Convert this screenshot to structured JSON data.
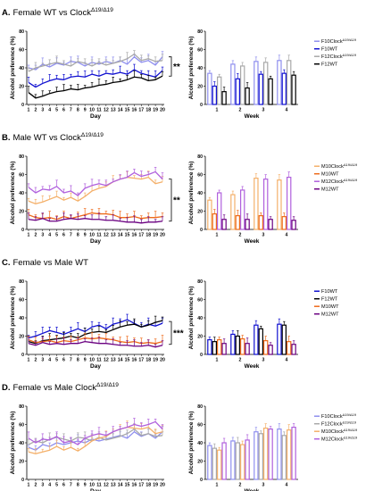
{
  "figure": {
    "stars": {
      "A": "**",
      "B": "**",
      "C": "***"
    }
  },
  "colors": {
    "F10Clock": "#8f8fee",
    "F10WT": "#1010d0",
    "F12Clock": "#a8a8a8",
    "F12WT": "#000000",
    "M10Clock": "#f4b06a",
    "M10WT": "#ee6a1a",
    "M12Clock": "#b060dd",
    "M12WT": "#6a0080"
  },
  "chart_data": [
    {
      "id": "A-line",
      "panel": "A",
      "type": "line",
      "title": "Female WT vs Clock",
      "title_sup": "Δ19/Δ19",
      "title_letter": "A.",
      "xlabel": "Day",
      "ylabel": "Alcohol preference (%)",
      "x": [
        1,
        2,
        3,
        4,
        5,
        6,
        7,
        8,
        9,
        10,
        11,
        12,
        13,
        14,
        15,
        16,
        17,
        18,
        19,
        20
      ],
      "xlim": [
        1,
        20
      ],
      "ylim": [
        0,
        80
      ],
      "yticks": [
        0,
        20,
        40,
        60,
        80
      ],
      "series": [
        {
          "key": "F10Clock",
          "values": [
            40,
            38,
            44,
            41,
            45,
            43,
            47,
            46,
            42,
            46,
            44,
            47,
            45,
            48,
            44,
            52,
            46,
            48,
            43,
            52
          ]
        },
        {
          "key": "F10WT",
          "values": [
            24,
            19,
            23,
            26,
            28,
            27,
            30,
            31,
            30,
            33,
            31,
            34,
            33,
            35,
            33,
            38,
            34,
            32,
            30,
            37
          ]
        },
        {
          "key": "F12Clock",
          "values": [
            36,
            40,
            42,
            44,
            46,
            44,
            42,
            47,
            45,
            42,
            46,
            43,
            45,
            47,
            50,
            55,
            48,
            50,
            47,
            48
          ]
        },
        {
          "key": "F12WT",
          "values": [
            13,
            7,
            9,
            12,
            14,
            15,
            17,
            16,
            18,
            19,
            21,
            22,
            24,
            25,
            27,
            30,
            29,
            26,
            27,
            31
          ]
        }
      ]
    },
    {
      "id": "A-bar",
      "panel": "A",
      "type": "bar",
      "xlabel": "Week",
      "ylabel": "Alcohol preference (%)",
      "categories": [
        "1",
        "2",
        "3",
        "4"
      ],
      "ylim": [
        0,
        80
      ],
      "yticks": [
        0,
        20,
        40,
        60,
        80
      ],
      "series": [
        {
          "name": "F10Clock",
          "sup": "Δ19/Δ19",
          "key": "F10Clock",
          "values": [
            34,
            44,
            47,
            48
          ]
        },
        {
          "name": "F10WT",
          "key": "F10WT",
          "values": [
            20,
            28,
            33,
            34
          ]
        },
        {
          "name": "F12Clock",
          "sup": "Δ19/Δ19",
          "key": "F12Clock",
          "values": [
            30,
            42,
            46,
            48
          ]
        },
        {
          "name": "F12WT",
          "key": "F12WT",
          "values": [
            14,
            18,
            28,
            32
          ]
        }
      ]
    },
    {
      "id": "B-line",
      "panel": "B",
      "type": "line",
      "title": "Male WT vs Clock",
      "title_sup": "Δ19/Δ19",
      "title_letter": "B.",
      "xlabel": "Day",
      "ylabel": "Alcohol preference (%)",
      "x": [
        1,
        2,
        3,
        4,
        5,
        6,
        7,
        8,
        9,
        10,
        11,
        12,
        13,
        14,
        15,
        16,
        17,
        18,
        19,
        20
      ],
      "xlim": [
        1,
        20
      ],
      "ylim": [
        0,
        80
      ],
      "yticks": [
        0,
        20,
        40,
        60,
        80
      ],
      "series": [
        {
          "key": "M10Clock",
          "values": [
            31,
            28,
            30,
            33,
            36,
            32,
            35,
            31,
            36,
            42,
            45,
            47,
            52,
            55,
            57,
            56,
            55,
            57,
            50,
            52
          ]
        },
        {
          "key": "M10WT",
          "values": [
            16,
            13,
            12,
            13,
            11,
            14,
            12,
            14,
            16,
            18,
            17,
            17,
            16,
            13,
            13,
            14,
            12,
            13,
            13,
            14
          ]
        },
        {
          "key": "M12Clock",
          "values": [
            46,
            40,
            44,
            43,
            47,
            40,
            42,
            37,
            45,
            48,
            50,
            48,
            52,
            55,
            57,
            62,
            58,
            60,
            63,
            55
          ]
        },
        {
          "key": "M12WT",
          "values": [
            11,
            10,
            12,
            9,
            9,
            11,
            12,
            11,
            12,
            11,
            11,
            10,
            10,
            9,
            8,
            8,
            7,
            8,
            8,
            9
          ]
        }
      ]
    },
    {
      "id": "B-bar",
      "panel": "B",
      "type": "bar",
      "xlabel": "Week",
      "ylabel": "Alcohol preference (%)",
      "categories": [
        "1",
        "2",
        "3",
        "4"
      ],
      "ylim": [
        0,
        80
      ],
      "yticks": [
        0,
        20,
        40,
        60,
        80
      ],
      "series": [
        {
          "name": "M10Clock",
          "sup": "Δ19/Δ19",
          "key": "M10Clock",
          "values": [
            32,
            38,
            56,
            54
          ]
        },
        {
          "name": "M10WT",
          "key": "M10WT",
          "values": [
            17,
            15,
            15,
            14
          ]
        },
        {
          "name": "M12Clock",
          "sup": "Δ19/Δ19",
          "key": "M12Clock",
          "values": [
            40,
            43,
            55,
            57
          ]
        },
        {
          "name": "M12WT",
          "key": "M12WT",
          "values": [
            11,
            11,
            11,
            10
          ]
        }
      ]
    },
    {
      "id": "C-line",
      "panel": "C",
      "type": "line",
      "title": "Female vs Male WT",
      "title_letter": "C.",
      "xlabel": "Day",
      "ylabel": "Alcohol preference (%)",
      "x": [
        1,
        2,
        3,
        4,
        5,
        6,
        7,
        8,
        9,
        10,
        11,
        12,
        13,
        14,
        15,
        16,
        17,
        18,
        19,
        20
      ],
      "xlim": [
        1,
        20
      ],
      "ylim": [
        0,
        80
      ],
      "yticks": [
        0,
        20,
        40,
        60,
        80
      ],
      "series": [
        {
          "key": "F10WT",
          "values": [
            18,
            20,
            23,
            26,
            24,
            22,
            25,
            28,
            25,
            30,
            32,
            28,
            33,
            35,
            38,
            34,
            30,
            33,
            31,
            34
          ]
        },
        {
          "key": "F12WT",
          "values": [
            14,
            12,
            15,
            16,
            17,
            18,
            20,
            18,
            22,
            24,
            25,
            24,
            27,
            30,
            32,
            33,
            30,
            32,
            35,
            37
          ]
        },
        {
          "key": "M10WT",
          "values": [
            16,
            13,
            14,
            15,
            13,
            15,
            14,
            16,
            18,
            17,
            18,
            17,
            16,
            14,
            13,
            14,
            12,
            13,
            12,
            14
          ]
        },
        {
          "key": "M12WT",
          "values": [
            12,
            10,
            13,
            11,
            12,
            11,
            12,
            12,
            14,
            13,
            12,
            12,
            11,
            10,
            10,
            9,
            9,
            10,
            8,
            10
          ]
        }
      ]
    },
    {
      "id": "C-bar",
      "panel": "C",
      "type": "bar",
      "xlabel": "Week",
      "ylabel": "Alcohol preference (%)",
      "categories": [
        "1",
        "2",
        "3",
        "4"
      ],
      "ylim": [
        0,
        80
      ],
      "yticks": [
        0,
        20,
        40,
        60,
        80
      ],
      "series": [
        {
          "name": "F10WT",
          "key": "F10WT",
          "values": [
            16,
            22,
            32,
            33
          ]
        },
        {
          "name": "F12WT",
          "key": "F12WT",
          "values": [
            14,
            20,
            28,
            32
          ]
        },
        {
          "name": "M10WT",
          "key": "M10WT",
          "values": [
            16,
            17,
            15,
            14
          ]
        },
        {
          "name": "M12WT",
          "key": "M12WT",
          "values": [
            12,
            12,
            10,
            11
          ]
        }
      ]
    },
    {
      "id": "D-line",
      "panel": "D",
      "type": "line",
      "title": "Female vs Male Clock",
      "title_sup": "Δ19/Δ19",
      "title_letter": "D.",
      "xlabel": "Day",
      "ylabel": "Alcohol preference (%)",
      "x": [
        1,
        2,
        3,
        4,
        5,
        6,
        7,
        8,
        9,
        10,
        11,
        12,
        13,
        14,
        15,
        16,
        17,
        18,
        19,
        20
      ],
      "xlim": [
        1,
        20
      ],
      "ylim": [
        0,
        80
      ],
      "yticks": [
        0,
        20,
        40,
        60,
        80
      ],
      "series": [
        {
          "key": "F10Clock",
          "values": [
            35,
            32,
            38,
            36,
            40,
            38,
            40,
            42,
            40,
            44,
            42,
            44,
            46,
            48,
            45,
            52,
            47,
            50,
            45,
            52
          ]
        },
        {
          "key": "F12Clock",
          "values": [
            38,
            42,
            40,
            44,
            46,
            44,
            42,
            46,
            45,
            42,
            46,
            43,
            45,
            47,
            50,
            55,
            48,
            50,
            47,
            48
          ]
        },
        {
          "key": "M10Clock",
          "values": [
            30,
            28,
            30,
            32,
            36,
            32,
            35,
            31,
            36,
            42,
            45,
            47,
            52,
            55,
            57,
            56,
            55,
            57,
            50,
            52
          ]
        },
        {
          "key": "M12Clock",
          "values": [
            45,
            40,
            44,
            43,
            47,
            40,
            42,
            38,
            45,
            48,
            50,
            48,
            52,
            55,
            57,
            60,
            58,
            60,
            63,
            55
          ]
        }
      ]
    },
    {
      "id": "D-bar",
      "panel": "D",
      "type": "bar",
      "xlabel": "Week",
      "ylabel": "Alcohol preference (%)",
      "categories": [
        "1",
        "2",
        "3",
        "4"
      ],
      "ylim": [
        0,
        80
      ],
      "yticks": [
        0,
        20,
        40,
        60,
        80
      ],
      "series": [
        {
          "name": "F10Clock",
          "sup": "Δ19/Δ19",
          "key": "F10Clock",
          "values": [
            37,
            42,
            52,
            55
          ]
        },
        {
          "name": "F12Clock",
          "sup": "Δ19/Δ19",
          "key": "F12Clock",
          "values": [
            34,
            40,
            50,
            48
          ]
        },
        {
          "name": "M10Clock",
          "sup": "Δ19/Δ19",
          "key": "M10Clock",
          "values": [
            32,
            38,
            56,
            54
          ]
        },
        {
          "name": "M12Clock",
          "sup": "Δ19/Δ19",
          "key": "M12Clock",
          "values": [
            40,
            43,
            55,
            57
          ]
        }
      ]
    }
  ]
}
